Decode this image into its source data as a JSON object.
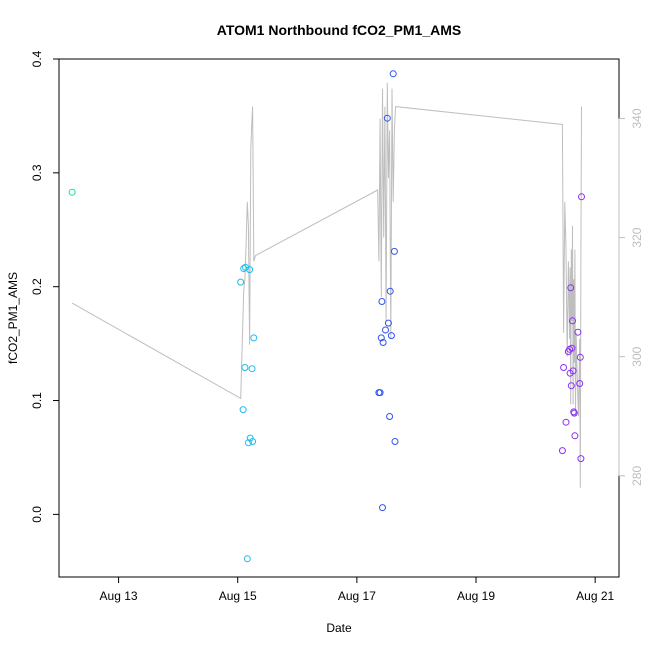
{
  "chart_data": {
    "type": "scatter",
    "title": "ATOM1 Northbound fCO2_PM1_AMS",
    "xlabel": "Date",
    "ylabel": "fCO2_PM1_AMS",
    "x_unit": "days since Aug 12 00:00",
    "xlim": [
      0,
      9.4
    ],
    "ylim": [
      -0.055,
      0.4
    ],
    "y2lim": [
      263,
      350
    ],
    "x_ticks": [
      {
        "value": 1,
        "label": "Aug 13"
      },
      {
        "value": 3,
        "label": "Aug 15"
      },
      {
        "value": 5,
        "label": "Aug 17"
      },
      {
        "value": 7,
        "label": "Aug 19"
      },
      {
        "value": 9,
        "label": "Aug 21"
      }
    ],
    "y_ticks": [
      {
        "value": 0.0,
        "label": "0.0"
      },
      {
        "value": 0.1,
        "label": "0.1"
      },
      {
        "value": 0.2,
        "label": "0.2"
      },
      {
        "value": 0.3,
        "label": "0.3"
      },
      {
        "value": 0.4,
        "label": "0.4"
      }
    ],
    "y2_ticks": [
      {
        "value": 280,
        "label": "280"
      },
      {
        "value": 300,
        "label": "300"
      },
      {
        "value": 320,
        "label": "320"
      },
      {
        "value": 340,
        "label": "340"
      }
    ],
    "points": [
      {
        "x": 0.22,
        "y": 0.283,
        "color": "#22dd99"
      },
      {
        "x": 3.05,
        "y": 0.204,
        "color": "#22bbee"
      },
      {
        "x": 3.1,
        "y": 0.216,
        "color": "#22bbee"
      },
      {
        "x": 3.13,
        "y": 0.217,
        "color": "#22bbee"
      },
      {
        "x": 3.12,
        "y": 0.129,
        "color": "#22bbee"
      },
      {
        "x": 3.09,
        "y": 0.092,
        "color": "#22bbee"
      },
      {
        "x": 3.16,
        "y": -0.039,
        "color": "#22bbee"
      },
      {
        "x": 3.18,
        "y": 0.063,
        "color": "#22bbee"
      },
      {
        "x": 3.21,
        "y": 0.067,
        "color": "#22bbee"
      },
      {
        "x": 3.25,
        "y": 0.064,
        "color": "#22bbee"
      },
      {
        "x": 3.2,
        "y": 0.215,
        "color": "#22bbee"
      },
      {
        "x": 3.24,
        "y": 0.128,
        "color": "#22bbee"
      },
      {
        "x": 3.27,
        "y": 0.155,
        "color": "#22bbee"
      },
      {
        "x": 5.37,
        "y": 0.107,
        "color": "#3355ee"
      },
      {
        "x": 5.39,
        "y": 0.107,
        "color": "#3355ee"
      },
      {
        "x": 5.41,
        "y": 0.155,
        "color": "#3355ee"
      },
      {
        "x": 5.42,
        "y": 0.187,
        "color": "#3355ee"
      },
      {
        "x": 5.44,
        "y": 0.151,
        "color": "#3355ee"
      },
      {
        "x": 5.43,
        "y": 0.006,
        "color": "#3355ee"
      },
      {
        "x": 5.48,
        "y": 0.162,
        "color": "#3355ee"
      },
      {
        "x": 5.51,
        "y": 0.348,
        "color": "#3355ee"
      },
      {
        "x": 5.53,
        "y": 0.168,
        "color": "#3355ee"
      },
      {
        "x": 5.55,
        "y": 0.086,
        "color": "#3355ee"
      },
      {
        "x": 5.56,
        "y": 0.196,
        "color": "#3355ee"
      },
      {
        "x": 5.58,
        "y": 0.157,
        "color": "#3355ee"
      },
      {
        "x": 5.61,
        "y": 0.387,
        "color": "#3355ee"
      },
      {
        "x": 5.63,
        "y": 0.231,
        "color": "#3355ee"
      },
      {
        "x": 5.64,
        "y": 0.064,
        "color": "#3355ee"
      },
      {
        "x": 8.45,
        "y": 0.056,
        "color": "#8833ee"
      },
      {
        "x": 8.47,
        "y": 0.129,
        "color": "#8833ee"
      },
      {
        "x": 8.51,
        "y": 0.081,
        "color": "#8833ee"
      },
      {
        "x": 8.55,
        "y": 0.143,
        "color": "#8833ee"
      },
      {
        "x": 8.57,
        "y": 0.145,
        "color": "#8833ee"
      },
      {
        "x": 8.58,
        "y": 0.124,
        "color": "#8833ee"
      },
      {
        "x": 8.59,
        "y": 0.199,
        "color": "#8833ee"
      },
      {
        "x": 8.6,
        "y": 0.113,
        "color": "#8833ee"
      },
      {
        "x": 8.61,
        "y": 0.146,
        "color": "#8833ee"
      },
      {
        "x": 8.62,
        "y": 0.17,
        "color": "#8833ee"
      },
      {
        "x": 8.63,
        "y": 0.126,
        "color": "#8833ee"
      },
      {
        "x": 8.64,
        "y": 0.09,
        "color": "#8833ee"
      },
      {
        "x": 8.65,
        "y": 0.089,
        "color": "#8833ee"
      },
      {
        "x": 8.66,
        "y": 0.069,
        "color": "#8833ee"
      },
      {
        "x": 8.71,
        "y": 0.16,
        "color": "#8833ee"
      },
      {
        "x": 8.74,
        "y": 0.115,
        "color": "#8833ee"
      },
      {
        "x": 8.75,
        "y": 0.138,
        "color": "#8833ee"
      },
      {
        "x": 8.76,
        "y": 0.049,
        "color": "#8833ee"
      },
      {
        "x": 8.77,
        "y": 0.279,
        "color": "#8833ee"
      }
    ],
    "co2_line": {
      "color": "#bebebe",
      "axis": "right",
      "x": [
        0.22,
        3.05,
        3.1,
        3.12,
        3.14,
        3.16,
        3.18,
        3.2,
        3.22,
        3.24,
        3.25,
        3.27,
        3.3,
        5.35,
        5.37,
        5.39,
        5.41,
        5.43,
        5.45,
        5.47,
        5.49,
        5.51,
        5.53,
        5.55,
        5.57,
        5.59,
        5.61,
        5.63,
        5.65,
        8.45,
        8.47,
        8.49,
        8.51,
        8.53,
        8.55,
        8.57,
        8.58,
        8.59,
        8.6,
        8.61,
        8.62,
        8.63,
        8.64,
        8.65,
        8.66,
        8.67,
        8.68,
        8.7,
        8.72,
        8.74,
        8.75,
        8.76,
        8.77
      ],
      "y": [
        309,
        293,
        311,
        313,
        319,
        326,
        322,
        302,
        335,
        340,
        342,
        316,
        317,
        328,
        316,
        340,
        310,
        345,
        320,
        342,
        306,
        346,
        330,
        338,
        303,
        345,
        326,
        338,
        342,
        339,
        304,
        326,
        318,
        300,
        316,
        303,
        315,
        292,
        318,
        306,
        322,
        292,
        313,
        299,
        318,
        290,
        304,
        296,
        290,
        303,
        278,
        318,
        342
      ]
    }
  }
}
